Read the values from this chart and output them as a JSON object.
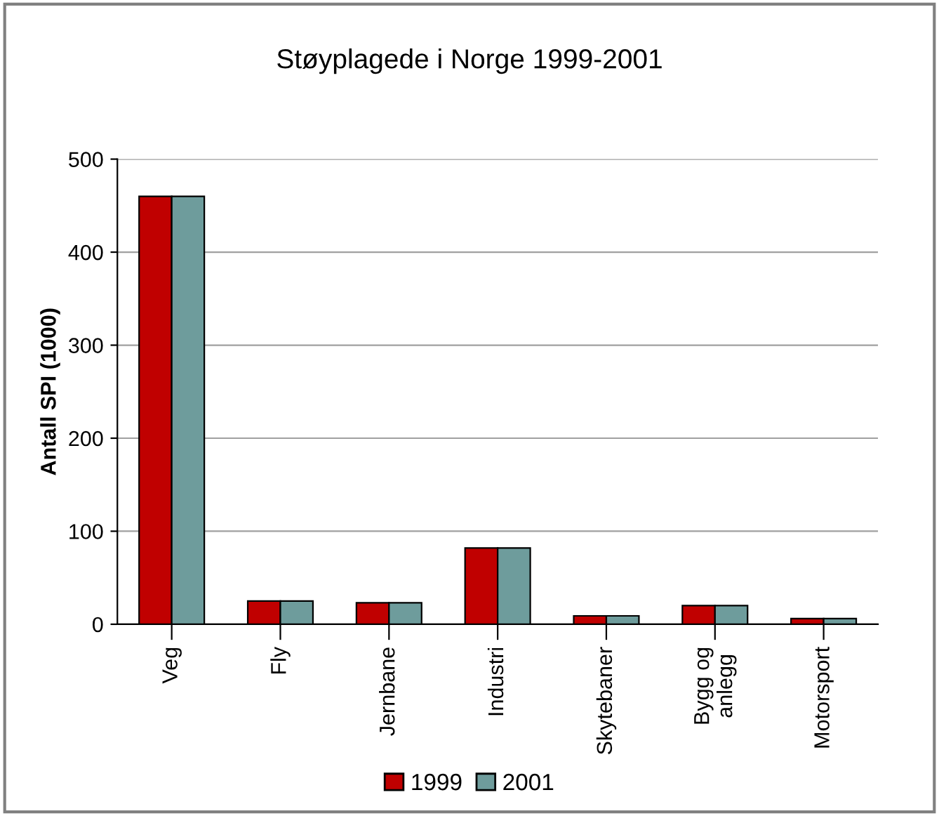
{
  "chart_data": {
    "type": "bar",
    "title": "Støyplagede i Norge 1999-2001",
    "ylabel": "Antall SPI (1000)",
    "categories": [
      "Veg",
      "Fly",
      "Jernbane",
      "Industri",
      "Skytebaner",
      "Bygg og\nanlegg",
      "Motorsport"
    ],
    "series": [
      {
        "name": "1999",
        "color": "#c00000",
        "values": [
          460,
          25,
          23,
          82,
          9,
          20,
          6
        ]
      },
      {
        "name": "2001",
        "color": "#6e9c9c",
        "values": [
          460,
          25,
          23,
          82,
          9,
          20,
          6
        ]
      }
    ],
    "ylim": [
      0,
      500
    ],
    "yticks": [
      0,
      100,
      200,
      300,
      400,
      500
    ],
    "grid": "y",
    "legend": "bottom"
  }
}
